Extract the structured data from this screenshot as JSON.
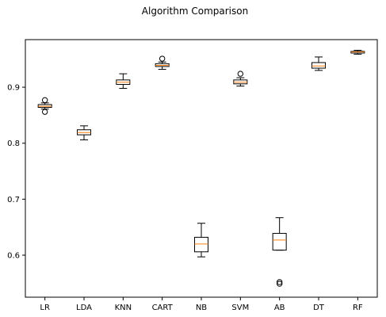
{
  "chart_data": {
    "type": "box",
    "title": "Algorithm Comparison",
    "xlabel": "",
    "ylabel": "",
    "ylim": [
      0.525,
      0.985
    ],
    "yticks": [
      0.6,
      0.7,
      0.8,
      0.9
    ],
    "ytick_labels": [
      "0.6",
      "0.7",
      "0.8",
      "0.9"
    ],
    "categories": [
      "LR",
      "LDA",
      "KNN",
      "CART",
      "NB",
      "SVM",
      "AB",
      "DT",
      "RF"
    ],
    "boxes": [
      {
        "name": "LR",
        "whislo": 0.861,
        "q1": 0.864,
        "med": 0.866,
        "q3": 0.869,
        "whishi": 0.872,
        "fliers": [
          0.856,
          0.877
        ]
      },
      {
        "name": "LDA",
        "whislo": 0.806,
        "q1": 0.815,
        "med": 0.819,
        "q3": 0.824,
        "whishi": 0.831,
        "fliers": []
      },
      {
        "name": "KNN",
        "whislo": 0.898,
        "q1": 0.905,
        "med": 0.909,
        "q3": 0.913,
        "whishi": 0.924,
        "fliers": []
      },
      {
        "name": "CART",
        "whislo": 0.932,
        "q1": 0.937,
        "med": 0.939,
        "q3": 0.942,
        "whishi": 0.945,
        "fliers": [
          0.951
        ]
      },
      {
        "name": "NB",
        "whislo": 0.597,
        "q1": 0.606,
        "med": 0.62,
        "q3": 0.632,
        "whishi": 0.657,
        "fliers": []
      },
      {
        "name": "SVM",
        "whislo": 0.902,
        "q1": 0.906,
        "med": 0.909,
        "q3": 0.913,
        "whishi": 0.917,
        "fliers": [
          0.924
        ]
      },
      {
        "name": "AB",
        "whislo": 0.609,
        "q1": 0.609,
        "med": 0.627,
        "q3": 0.639,
        "whishi": 0.667,
        "fliers": [
          0.549,
          0.552
        ]
      },
      {
        "name": "DT",
        "whislo": 0.93,
        "q1": 0.934,
        "med": 0.938,
        "q3": 0.944,
        "whishi": 0.954,
        "fliers": []
      },
      {
        "name": "RF",
        "whislo": 0.959,
        "q1": 0.961,
        "med": 0.963,
        "q3": 0.964,
        "whishi": 0.966,
        "fliers": []
      }
    ],
    "colors": {
      "box": "#000000",
      "median": "#ff7f0e",
      "axes": "#000000",
      "background": "#ffffff"
    },
    "grid": false,
    "legend": "none"
  }
}
